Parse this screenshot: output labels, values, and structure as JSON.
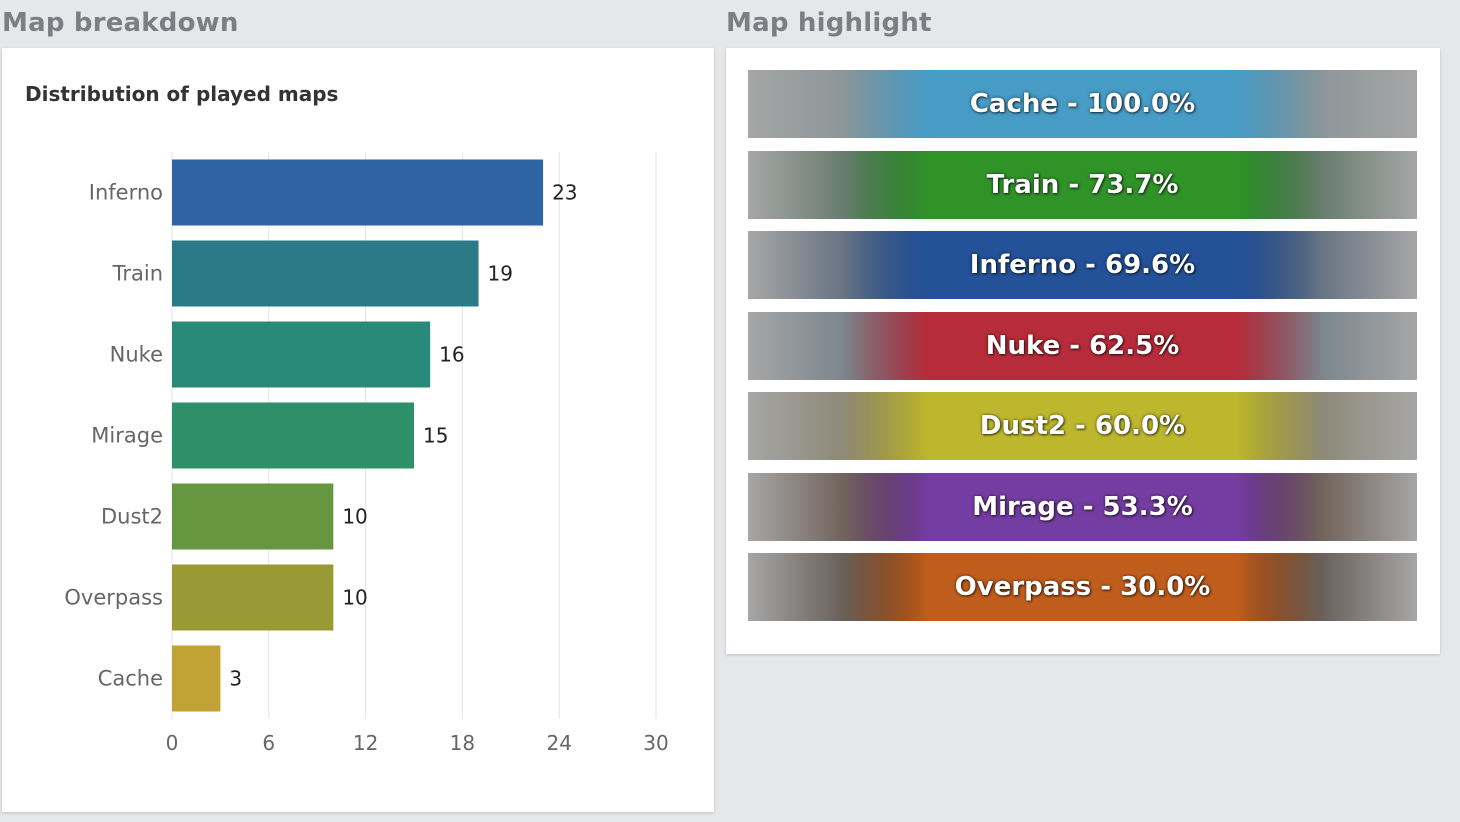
{
  "left_section_title": "Map breakdown",
  "right_section_title": "Map highlight",
  "chart_data": {
    "type": "bar",
    "orientation": "horizontal",
    "title": "Distribution of played maps",
    "categories": [
      "Inferno",
      "Train",
      "Nuke",
      "Mirage",
      "Dust2",
      "Overpass",
      "Cache"
    ],
    "values": [
      23,
      19,
      16,
      15,
      10,
      10,
      3
    ],
    "colors": [
      "#2d63a3",
      "#2a7a88",
      "#2a8a79",
      "#2d9069",
      "#66963f",
      "#9a9a35",
      "#c2a234"
    ],
    "xlim": [
      0,
      30
    ],
    "xticks": [
      0,
      6,
      12,
      18,
      24,
      30
    ],
    "grid": true,
    "data_labels": true
  },
  "highlights": [
    {
      "text": "Cache - 100.0%",
      "color": "#3e9fd0",
      "bg": "#7a8a8f"
    },
    {
      "text": "Train - 73.7%",
      "color": "#2e9c23",
      "bg": "#3b5e48"
    },
    {
      "text": "Inferno - 69.6%",
      "color": "#1f52a1",
      "bg": "#3b4f6a"
    },
    {
      "text": "Nuke - 62.5%",
      "color": "#c7202e",
      "bg": "#5c6f7c"
    },
    {
      "text": "Dust2 - 60.0%",
      "color": "#c9c326",
      "bg": "#7b7355"
    },
    {
      "text": "Mirage - 53.3%",
      "color": "#7b3fb8",
      "bg": "#4b3324"
    },
    {
      "text": "Overpass - 30.0%",
      "color": "#d8661c",
      "bg": "#3b2c22"
    }
  ]
}
